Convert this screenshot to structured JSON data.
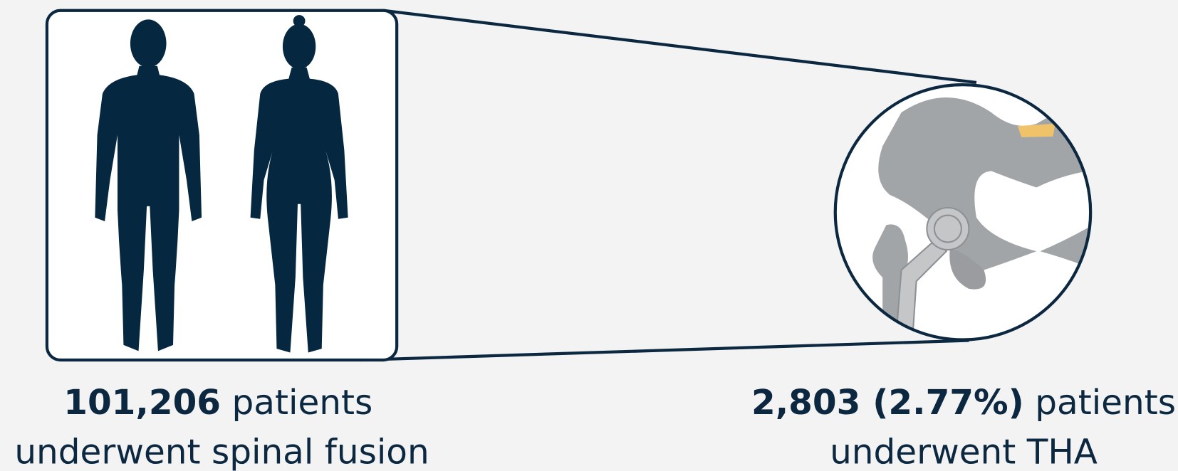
{
  "left": {
    "count": "101,206",
    "text": "patients",
    "line2": "underwent spinal fusion"
  },
  "right": {
    "count": "2,803 (2.77%)",
    "text": "patients",
    "line2": "underwent THA"
  }
}
